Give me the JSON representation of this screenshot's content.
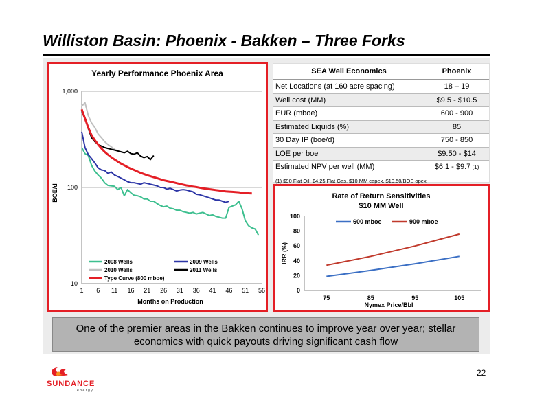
{
  "slide": {
    "title": "Williston Basin: Phoenix - Bakken – Three Forks",
    "banner": "One of the premier areas in the Bakken continues to improve year over year; stellar economics with quick payouts driving significant cash flow",
    "page_number": "22",
    "logo": {
      "name": "SUNDANCE",
      "sub": "energy",
      "colors": [
        "#e41f26",
        "#f7941d"
      ]
    },
    "accent_color": "#e41f26"
  },
  "table": {
    "header_col1": "SEA Well Economics",
    "header_col2": "Phoenix",
    "rows": [
      {
        "label": "Net Locations (at 160 acre spacing)",
        "value": "18 – 19",
        "footnote": ""
      },
      {
        "label": "Well cost (MM)",
        "value": "$9.5 - $10.5",
        "footnote": ""
      },
      {
        "label": "EUR (mboe)",
        "value": "600 - 900",
        "footnote": ""
      },
      {
        "label": "Estimated Liquids (%)",
        "value": "85",
        "footnote": ""
      },
      {
        "label": "30 Day IP (boe/d)",
        "value": "750 - 850",
        "footnote": ""
      },
      {
        "label": "LOE per boe",
        "value": "$9.50 - $14",
        "footnote": ""
      },
      {
        "label": "Estimated NPV per well (MM)",
        "value": "$6.1 - $9.7",
        "footnote": "(1)"
      }
    ],
    "note": "(1) $90 Flat Oil; $4.25 Flat Gas, $10 MM capex, $10.50/BOE opex"
  },
  "chart_data": [
    {
      "type": "line",
      "title": "Yearly Performance Phoenix Area",
      "xlabel": "Months on Production",
      "ylabel": "BOE/d",
      "yscale": "log",
      "ylim": [
        10,
        1000
      ],
      "xlim": [
        1,
        56
      ],
      "xticks": [
        1,
        6,
        11,
        16,
        21,
        26,
        31,
        36,
        41,
        46,
        51,
        56
      ],
      "yticks": [
        "10",
        "100",
        "1,000"
      ],
      "legend": "bottom",
      "series": [
        {
          "name": "2008 Wells",
          "color": "#3dbf8f",
          "values": [
            260,
            225,
            215,
            170,
            148,
            135,
            125,
            112,
            105,
            104,
            103,
            95,
            100,
            82,
            95,
            88,
            83,
            82,
            80,
            76,
            76,
            72,
            72,
            68,
            65,
            63,
            64,
            61,
            60,
            58,
            58,
            56,
            55,
            54,
            55,
            53,
            54,
            55,
            53,
            51,
            52,
            50,
            49,
            48,
            48,
            62,
            64,
            66,
            72,
            60,
            45,
            40,
            38,
            37,
            32
          ]
        },
        {
          "name": "2009 Wells",
          "color": "#2c35a6",
          "values": [
            380,
            260,
            220,
            200,
            180,
            160,
            152,
            150,
            140,
            145,
            135,
            130,
            125,
            120,
            115,
            112,
            112,
            110,
            108,
            112,
            110,
            108,
            106,
            104,
            100,
            100,
            96,
            98,
            95,
            92,
            94,
            95,
            94,
            92,
            90,
            85,
            84,
            82,
            80,
            78,
            76,
            74,
            74,
            72,
            70,
            72
          ]
        },
        {
          "name": "2010 Wells",
          "color": "#c0c0c0",
          "values": [
            700,
            760,
            560,
            470,
            420,
            360,
            330,
            300,
            280,
            265,
            250,
            240
          ]
        },
        {
          "name": "2011 Wells",
          "color": "#000000",
          "values": [
            620,
            520,
            410,
            330,
            300,
            280,
            270,
            260,
            255,
            250,
            245,
            240,
            235,
            230,
            238,
            225,
            222,
            230,
            212,
            205,
            210,
            195,
            215
          ]
        },
        {
          "name": "Type Curve (800 mboe)",
          "color": "#e41f26",
          "values": [
            650,
            520,
            420,
            350,
            310,
            280,
            255,
            235,
            220,
            207,
            196,
            186,
            177,
            170,
            163,
            157,
            152,
            147,
            142,
            138,
            134,
            131,
            128,
            125,
            122,
            119,
            117,
            115,
            113,
            111,
            109,
            107,
            105,
            104,
            102,
            101,
            99.5,
            98,
            97,
            96,
            95,
            94,
            93,
            92,
            91,
            90.5,
            90,
            89.5,
            89,
            88,
            87.5,
            87,
            86.5
          ]
        }
      ]
    },
    {
      "type": "line",
      "title": "Rate of Return Sensitivities",
      "subtitle": "$10 MM Well",
      "xlabel": "Nymex Price/Bbl",
      "ylabel": "IRR (%)",
      "ylim": [
        0,
        100
      ],
      "yticks": [
        0,
        20,
        40,
        60,
        80,
        100
      ],
      "categories": [
        75,
        85,
        95,
        105
      ],
      "legend": "top",
      "series": [
        {
          "name": "600 mboe",
          "color": "#3b6fc4",
          "values": [
            19,
            27,
            36,
            46
          ]
        },
        {
          "name": "900 mboe",
          "color": "#c0392b",
          "values": [
            34,
            46,
            60,
            76
          ]
        }
      ]
    }
  ]
}
